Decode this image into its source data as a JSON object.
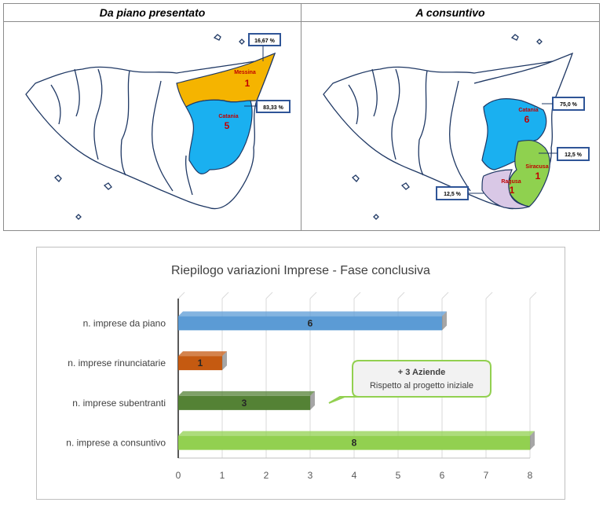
{
  "maps": {
    "left": {
      "title": "Da piano presentato",
      "regions": [
        {
          "name": "Messina",
          "count": "1",
          "color": "#f5b400"
        },
        {
          "name": "Catania",
          "count": "5",
          "color": "#1ab0f0"
        }
      ],
      "labels": [
        "16,67 %",
        "83,33 %"
      ]
    },
    "right": {
      "title": "A consuntivo",
      "regions": [
        {
          "name": "Catania",
          "count": "6",
          "color": "#1ab0f0"
        },
        {
          "name": "Siracusa",
          "count": "1",
          "color": "#8fd14f"
        },
        {
          "name": "Ragusa",
          "count": "1",
          "color": "#d9c8e6"
        }
      ],
      "labels": [
        "75,0 %",
        "12,5 %",
        "12,5 %"
      ]
    }
  },
  "chart_data": {
    "type": "bar",
    "orientation": "horizontal",
    "title": "Riepilogo variazioni Imprese - Fase conclusiva",
    "categories": [
      "n. imprese da piano",
      "n. imprese rinunciatarie",
      "n. imprese subentranti",
      "n. imprese a consuntivo"
    ],
    "values": [
      6,
      1,
      3,
      8
    ],
    "value_labels": [
      "6",
      "1",
      "3",
      "8"
    ],
    "colors": [
      "#5b9bd5",
      "#c55a11",
      "#548235",
      "#92d050"
    ],
    "xlim": [
      0,
      8
    ],
    "xticks": [
      "0",
      "1",
      "2",
      "3",
      "4",
      "5",
      "6",
      "7",
      "8"
    ],
    "grid": true,
    "annotation": {
      "title": "+ 3 Aziende",
      "text": "Rispetto al progetto iniziale"
    }
  }
}
